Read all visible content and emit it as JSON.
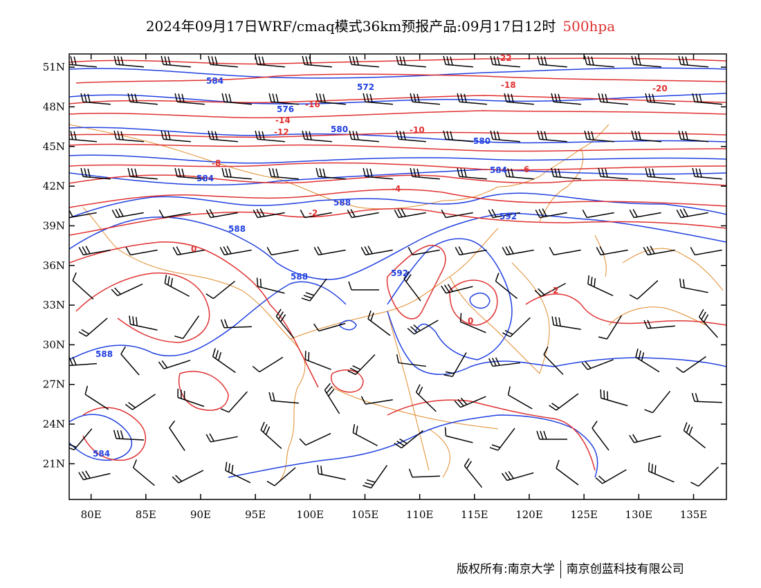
{
  "title": {
    "main": "2024年09月17日WRF/cmaq模式36km预报产品:09月17日12时",
    "level": "500hpa"
  },
  "axes": {
    "lat_labels": [
      "51N",
      "48N",
      "45N",
      "42N",
      "39N",
      "36N",
      "33N",
      "30N",
      "27N",
      "24N",
      "21N"
    ],
    "lat_values": [
      51,
      48,
      45,
      42,
      39,
      36,
      33,
      30,
      27,
      24,
      21
    ],
    "lon_labels": [
      "80E",
      "85E",
      "90E",
      "95E",
      "100E",
      "105E",
      "110E",
      "115E",
      "120E",
      "125E",
      "130E",
      "135E"
    ],
    "lon_values": [
      80,
      85,
      90,
      95,
      100,
      105,
      110,
      115,
      120,
      125,
      130,
      135
    ],
    "lon_range": [
      78,
      138
    ],
    "lat_range": [
      18.3,
      52
    ]
  },
  "colors": {
    "height_contour": "#2040e0",
    "temperature_contour": "#e03030",
    "boundary": "#e08a2a",
    "wind_barb": "#000000"
  },
  "height_labels": [
    "584",
    "572",
    "576",
    "580",
    "584",
    "588",
    "592",
    "588",
    "584",
    "580",
    "588",
    "592",
    "588",
    "584"
  ],
  "temperature_labels": [
    "-22",
    "-20",
    "-18",
    "-16",
    "-14",
    "-12",
    "-10",
    "-8",
    "-6",
    "-4",
    "-2",
    "0",
    "-2",
    "0"
  ],
  "footer": {
    "left": "版权所有:南京大学",
    "right": "南京创蓝科技有限公司"
  }
}
